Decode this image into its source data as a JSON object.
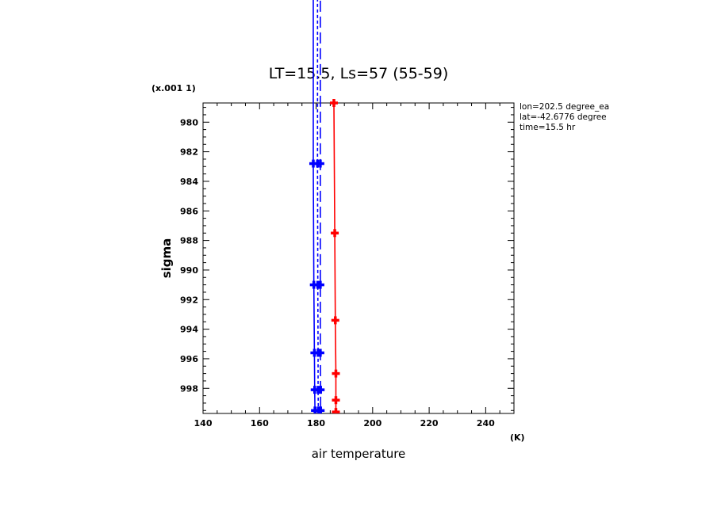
{
  "chart_data": {
    "type": "line",
    "title": "LT=15.5, Ls=57 (55-59)",
    "xlabel": "air temperature",
    "xunit": "(K)",
    "ylabel": "sigma",
    "yunit": "(x.001 1)",
    "xlim": [
      140,
      250
    ],
    "ylim": [
      999.7,
      978.7
    ],
    "y_inverted": true,
    "xticks": [
      140,
      160,
      180,
      200,
      220,
      240
    ],
    "yticks": [
      980,
      982,
      984,
      986,
      988,
      990,
      992,
      994,
      996,
      998
    ],
    "info_lines": [
      "lon=202.5 degree_ea",
      "lat=-42.6776 degree",
      "time=15.5 hr"
    ],
    "series": [
      {
        "color": "#ff0000",
        "style": "solid",
        "points": [
          [
            186.3,
            978.7
          ],
          [
            186.6,
            987.5
          ],
          [
            186.8,
            993.4
          ],
          [
            187.0,
            997.0
          ],
          [
            187.0,
            998.8
          ],
          [
            187.0,
            999.6
          ]
        ]
      },
      {
        "color": "#0000ff",
        "style": "solid",
        "points": [
          [
            179.0,
            960.0
          ],
          [
            179.0,
            982.8
          ],
          [
            179.2,
            991.0
          ],
          [
            179.4,
            995.6
          ],
          [
            179.5,
            998.1
          ],
          [
            179.6,
            999.5
          ]
        ]
      },
      {
        "color": "#0000ff",
        "style": "dashed",
        "points": [
          [
            180.5,
            960.0
          ],
          [
            180.5,
            982.8
          ],
          [
            180.6,
            991.0
          ],
          [
            180.7,
            995.6
          ],
          [
            180.7,
            998.1
          ],
          [
            180.8,
            999.5
          ]
        ]
      },
      {
        "color": "#0000ff",
        "style": "longdash",
        "points": [
          [
            181.5,
            960.0
          ],
          [
            181.5,
            982.8
          ],
          [
            181.5,
            991.0
          ],
          [
            181.5,
            995.6
          ],
          [
            181.6,
            998.1
          ],
          [
            181.6,
            999.5
          ]
        ]
      }
    ]
  }
}
